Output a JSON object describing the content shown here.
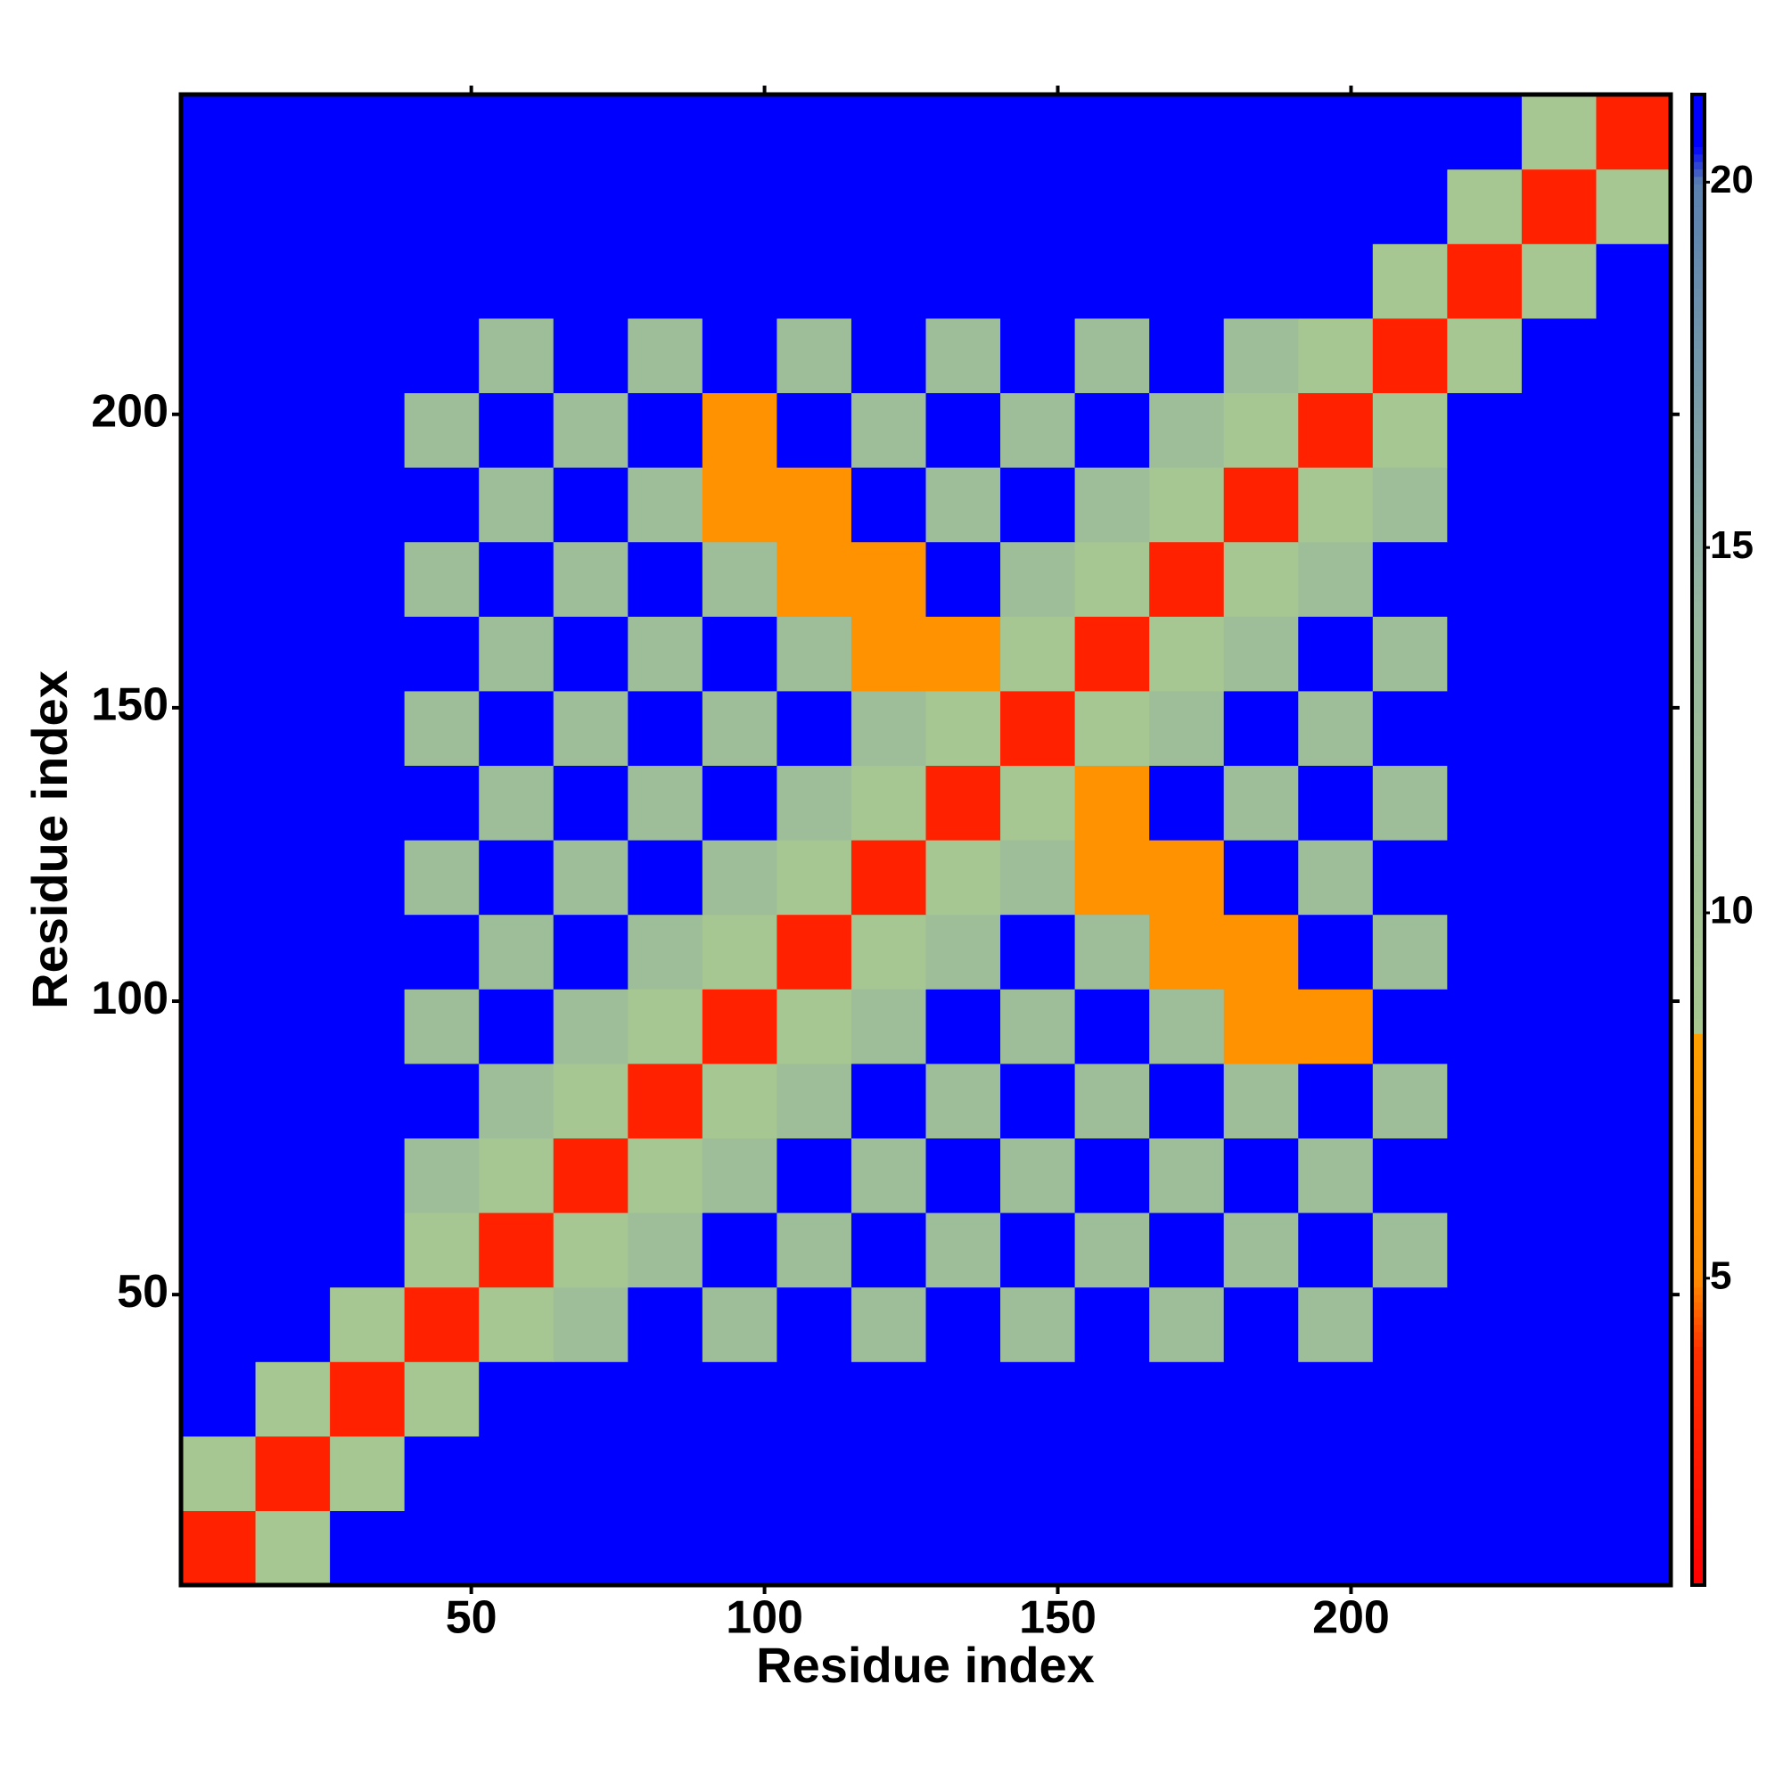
{
  "chart_data": {
    "type": "heatmap",
    "xlabel": "Residue index",
    "ylabel": "Residue index",
    "xlim": [
      0.5,
      254.5
    ],
    "ylim": [
      0.5,
      254.5
    ],
    "xticks": [
      50,
      100,
      150,
      200
    ],
    "yticks": [
      50,
      100,
      150,
      200
    ],
    "xbins": [
      0.5,
      13.2,
      25.9,
      38.6,
      51.3,
      64,
      76.7,
      89.4,
      102.1,
      114.8,
      127.5,
      140.2,
      152.9,
      165.6,
      178.3,
      191,
      203.7,
      216.4,
      229.1,
      241.8,
      254.5
    ],
    "ybins": [
      0.5,
      13.2,
      25.9,
      38.6,
      51.3,
      64,
      76.7,
      89.4,
      102.1,
      114.8,
      127.5,
      140.2,
      152.9,
      165.6,
      178.3,
      191,
      203.7,
      216.4,
      229.1,
      241.8,
      254.5
    ],
    "z": [
      [
        3,
        9,
        22,
        22,
        22,
        22,
        22,
        22,
        22,
        22,
        22,
        22,
        22,
        22,
        22,
        22,
        22,
        22,
        22,
        22
      ],
      [
        9,
        3,
        9,
        22,
        22,
        22,
        22,
        22,
        22,
        22,
        22,
        22,
        22,
        22,
        22,
        22,
        22,
        22,
        22,
        22
      ],
      [
        22,
        9,
        3,
        9,
        22,
        22,
        22,
        22,
        22,
        22,
        22,
        22,
        22,
        22,
        22,
        22,
        22,
        22,
        22,
        22
      ],
      [
        22,
        22,
        9,
        3,
        9,
        12,
        22,
        12,
        22,
        12,
        22,
        12,
        22,
        12,
        22,
        12,
        22,
        22,
        22,
        22
      ],
      [
        22,
        22,
        22,
        9,
        3,
        9,
        12,
        22,
        12,
        22,
        12,
        22,
        12,
        22,
        12,
        22,
        12,
        22,
        22,
        22
      ],
      [
        22,
        22,
        22,
        12,
        9,
        3,
        9,
        12,
        22,
        12,
        22,
        12,
        22,
        12,
        22,
        12,
        22,
        22,
        22,
        22
      ],
      [
        22,
        22,
        22,
        22,
        12,
        9,
        3,
        9,
        12,
        22,
        12,
        22,
        12,
        22,
        12,
        22,
        12,
        22,
        22,
        22
      ],
      [
        22,
        22,
        22,
        12,
        22,
        12,
        9,
        3,
        9,
        12,
        22,
        12,
        22,
        12,
        6,
        6,
        22,
        22,
        22,
        22
      ],
      [
        22,
        22,
        22,
        22,
        12,
        22,
        12,
        9,
        3,
        9,
        12,
        22,
        12,
        6,
        6,
        22,
        12,
        22,
        22,
        22
      ],
      [
        22,
        22,
        22,
        12,
        22,
        12,
        22,
        12,
        9,
        3,
        9,
        12,
        6,
        6,
        22,
        12,
        22,
        22,
        22,
        22
      ],
      [
        22,
        22,
        22,
        22,
        12,
        22,
        12,
        22,
        12,
        9,
        3,
        9,
        6,
        22,
        12,
        22,
        12,
        22,
        22,
        22
      ],
      [
        22,
        22,
        22,
        12,
        22,
        12,
        22,
        12,
        22,
        12,
        9,
        3,
        9,
        12,
        22,
        12,
        22,
        22,
        22,
        22
      ],
      [
        22,
        22,
        22,
        22,
        12,
        22,
        12,
        22,
        12,
        6,
        6,
        9,
        3,
        9,
        12,
        22,
        12,
        22,
        22,
        22
      ],
      [
        22,
        22,
        22,
        12,
        22,
        12,
        22,
        12,
        6,
        6,
        22,
        12,
        9,
        3,
        9,
        12,
        22,
        22,
        22,
        22
      ],
      [
        22,
        22,
        22,
        22,
        12,
        22,
        12,
        6,
        6,
        22,
        12,
        22,
        12,
        9,
        3,
        9,
        12,
        22,
        22,
        22
      ],
      [
        22,
        22,
        22,
        12,
        22,
        12,
        22,
        6,
        22,
        12,
        22,
        12,
        22,
        12,
        9,
        3,
        9,
        22,
        22,
        22
      ],
      [
        22,
        22,
        22,
        22,
        12,
        22,
        12,
        22,
        12,
        22,
        12,
        22,
        12,
        22,
        12,
        9,
        3,
        9,
        22,
        22
      ],
      [
        22,
        22,
        22,
        22,
        22,
        22,
        22,
        22,
        22,
        22,
        22,
        22,
        22,
        22,
        22,
        22,
        9,
        3,
        9,
        22
      ],
      [
        22,
        22,
        22,
        22,
        22,
        22,
        22,
        22,
        22,
        22,
        22,
        22,
        22,
        22,
        22,
        22,
        22,
        9,
        3,
        9
      ],
      [
        22,
        22,
        22,
        22,
        22,
        22,
        22,
        22,
        22,
        22,
        22,
        22,
        22,
        22,
        22,
        22,
        22,
        22,
        9,
        3
      ]
    ],
    "zlim": [
      0.8,
      21.2
    ],
    "zticks": [
      5,
      10,
      15,
      20
    ],
    "colorscale": [
      [
        0.8,
        "#ff0000"
      ],
      [
        4,
        "#ff3000"
      ],
      [
        5,
        "#ff8c00"
      ],
      [
        8.3,
        "#ffa000"
      ],
      [
        8.4,
        "#a8c890"
      ],
      [
        14,
        "#98b8a0"
      ],
      [
        20,
        "#5a80b0"
      ],
      [
        20.5,
        "#0000ff"
      ]
    ]
  }
}
